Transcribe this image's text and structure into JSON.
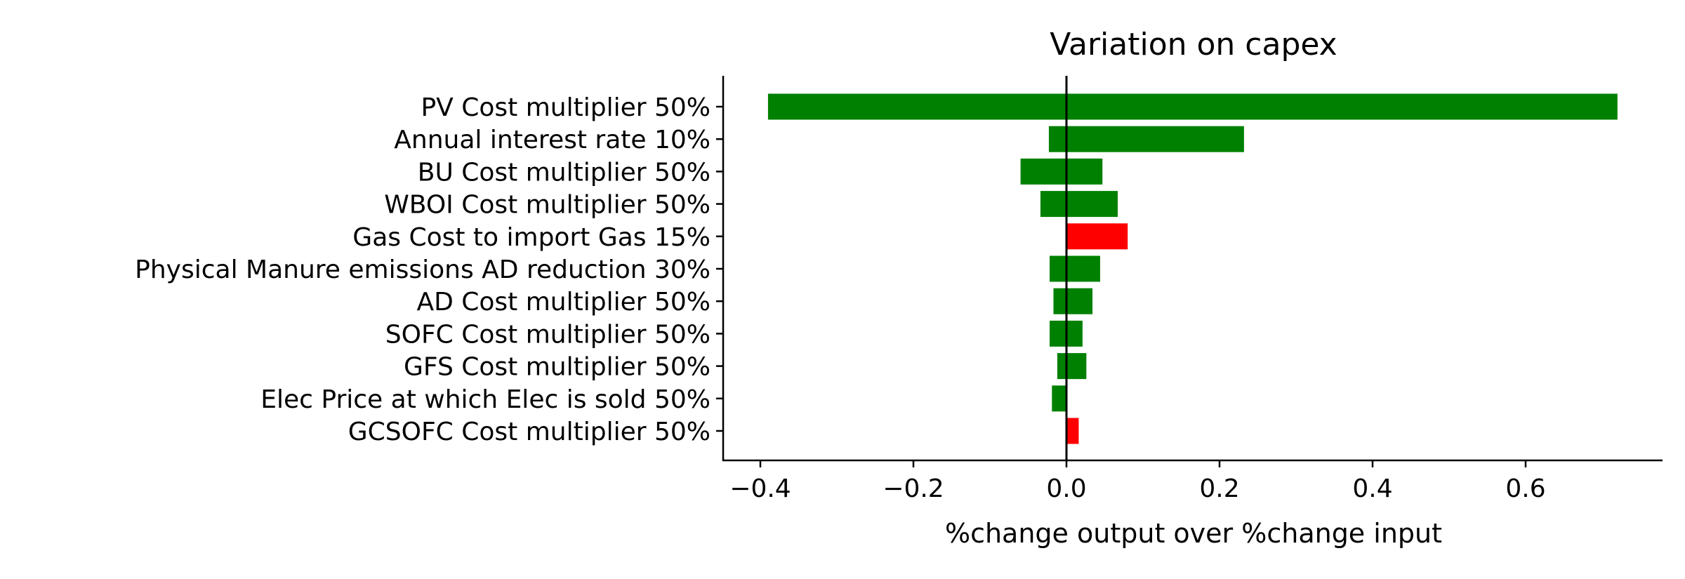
{
  "chart_data": {
    "type": "bar",
    "orientation": "horizontal",
    "title": "Variation on capex",
    "xlabel": "%change output over %change input",
    "ylabel": "",
    "xlim": [
      -0.4,
      0.78
    ],
    "xticks": [
      -0.4,
      -0.2,
      0.0,
      0.2,
      0.4,
      0.6
    ],
    "xtick_labels": [
      "−0.4",
      "−0.2",
      "0.0",
      "0.2",
      "0.4",
      "0.6"
    ],
    "grid": false,
    "legend": "none",
    "categories": [
      "PV Cost multiplier 50%",
      "Annual interest rate 10%",
      "BU Cost multiplier 50%",
      "WBOI Cost multiplier 50%",
      "Gas Cost to import Gas 15%",
      "Physical Manure emissions AD reduction 30%",
      "AD Cost multiplier 50%",
      "SOFC Cost multiplier 50%",
      "GFS Cost multiplier 50%",
      "Elec Price at which Elec is sold 50%",
      "GCSOFC Cost multiplier 50%"
    ],
    "bars": [
      {
        "low": -0.39,
        "high": 0.72,
        "color": "#008000"
      },
      {
        "low": -0.023,
        "high": 0.232,
        "color": "#008000"
      },
      {
        "low": -0.06,
        "high": 0.047,
        "color": "#008000"
      },
      {
        "low": -0.034,
        "high": 0.067,
        "color": "#008000"
      },
      {
        "low": 0.0,
        "high": 0.08,
        "color": "#ff0000"
      },
      {
        "low": -0.022,
        "high": 0.044,
        "color": "#008000"
      },
      {
        "low": -0.017,
        "high": 0.034,
        "color": "#008000"
      },
      {
        "low": -0.022,
        "high": 0.021,
        "color": "#008000"
      },
      {
        "low": -0.012,
        "high": 0.026,
        "color": "#008000"
      },
      {
        "low": -0.019,
        "high": 0.0,
        "color": "#008000"
      },
      {
        "low": 0.0,
        "high": 0.016,
        "color": "#ff0000"
      }
    ],
    "reference_line": 0.0
  }
}
